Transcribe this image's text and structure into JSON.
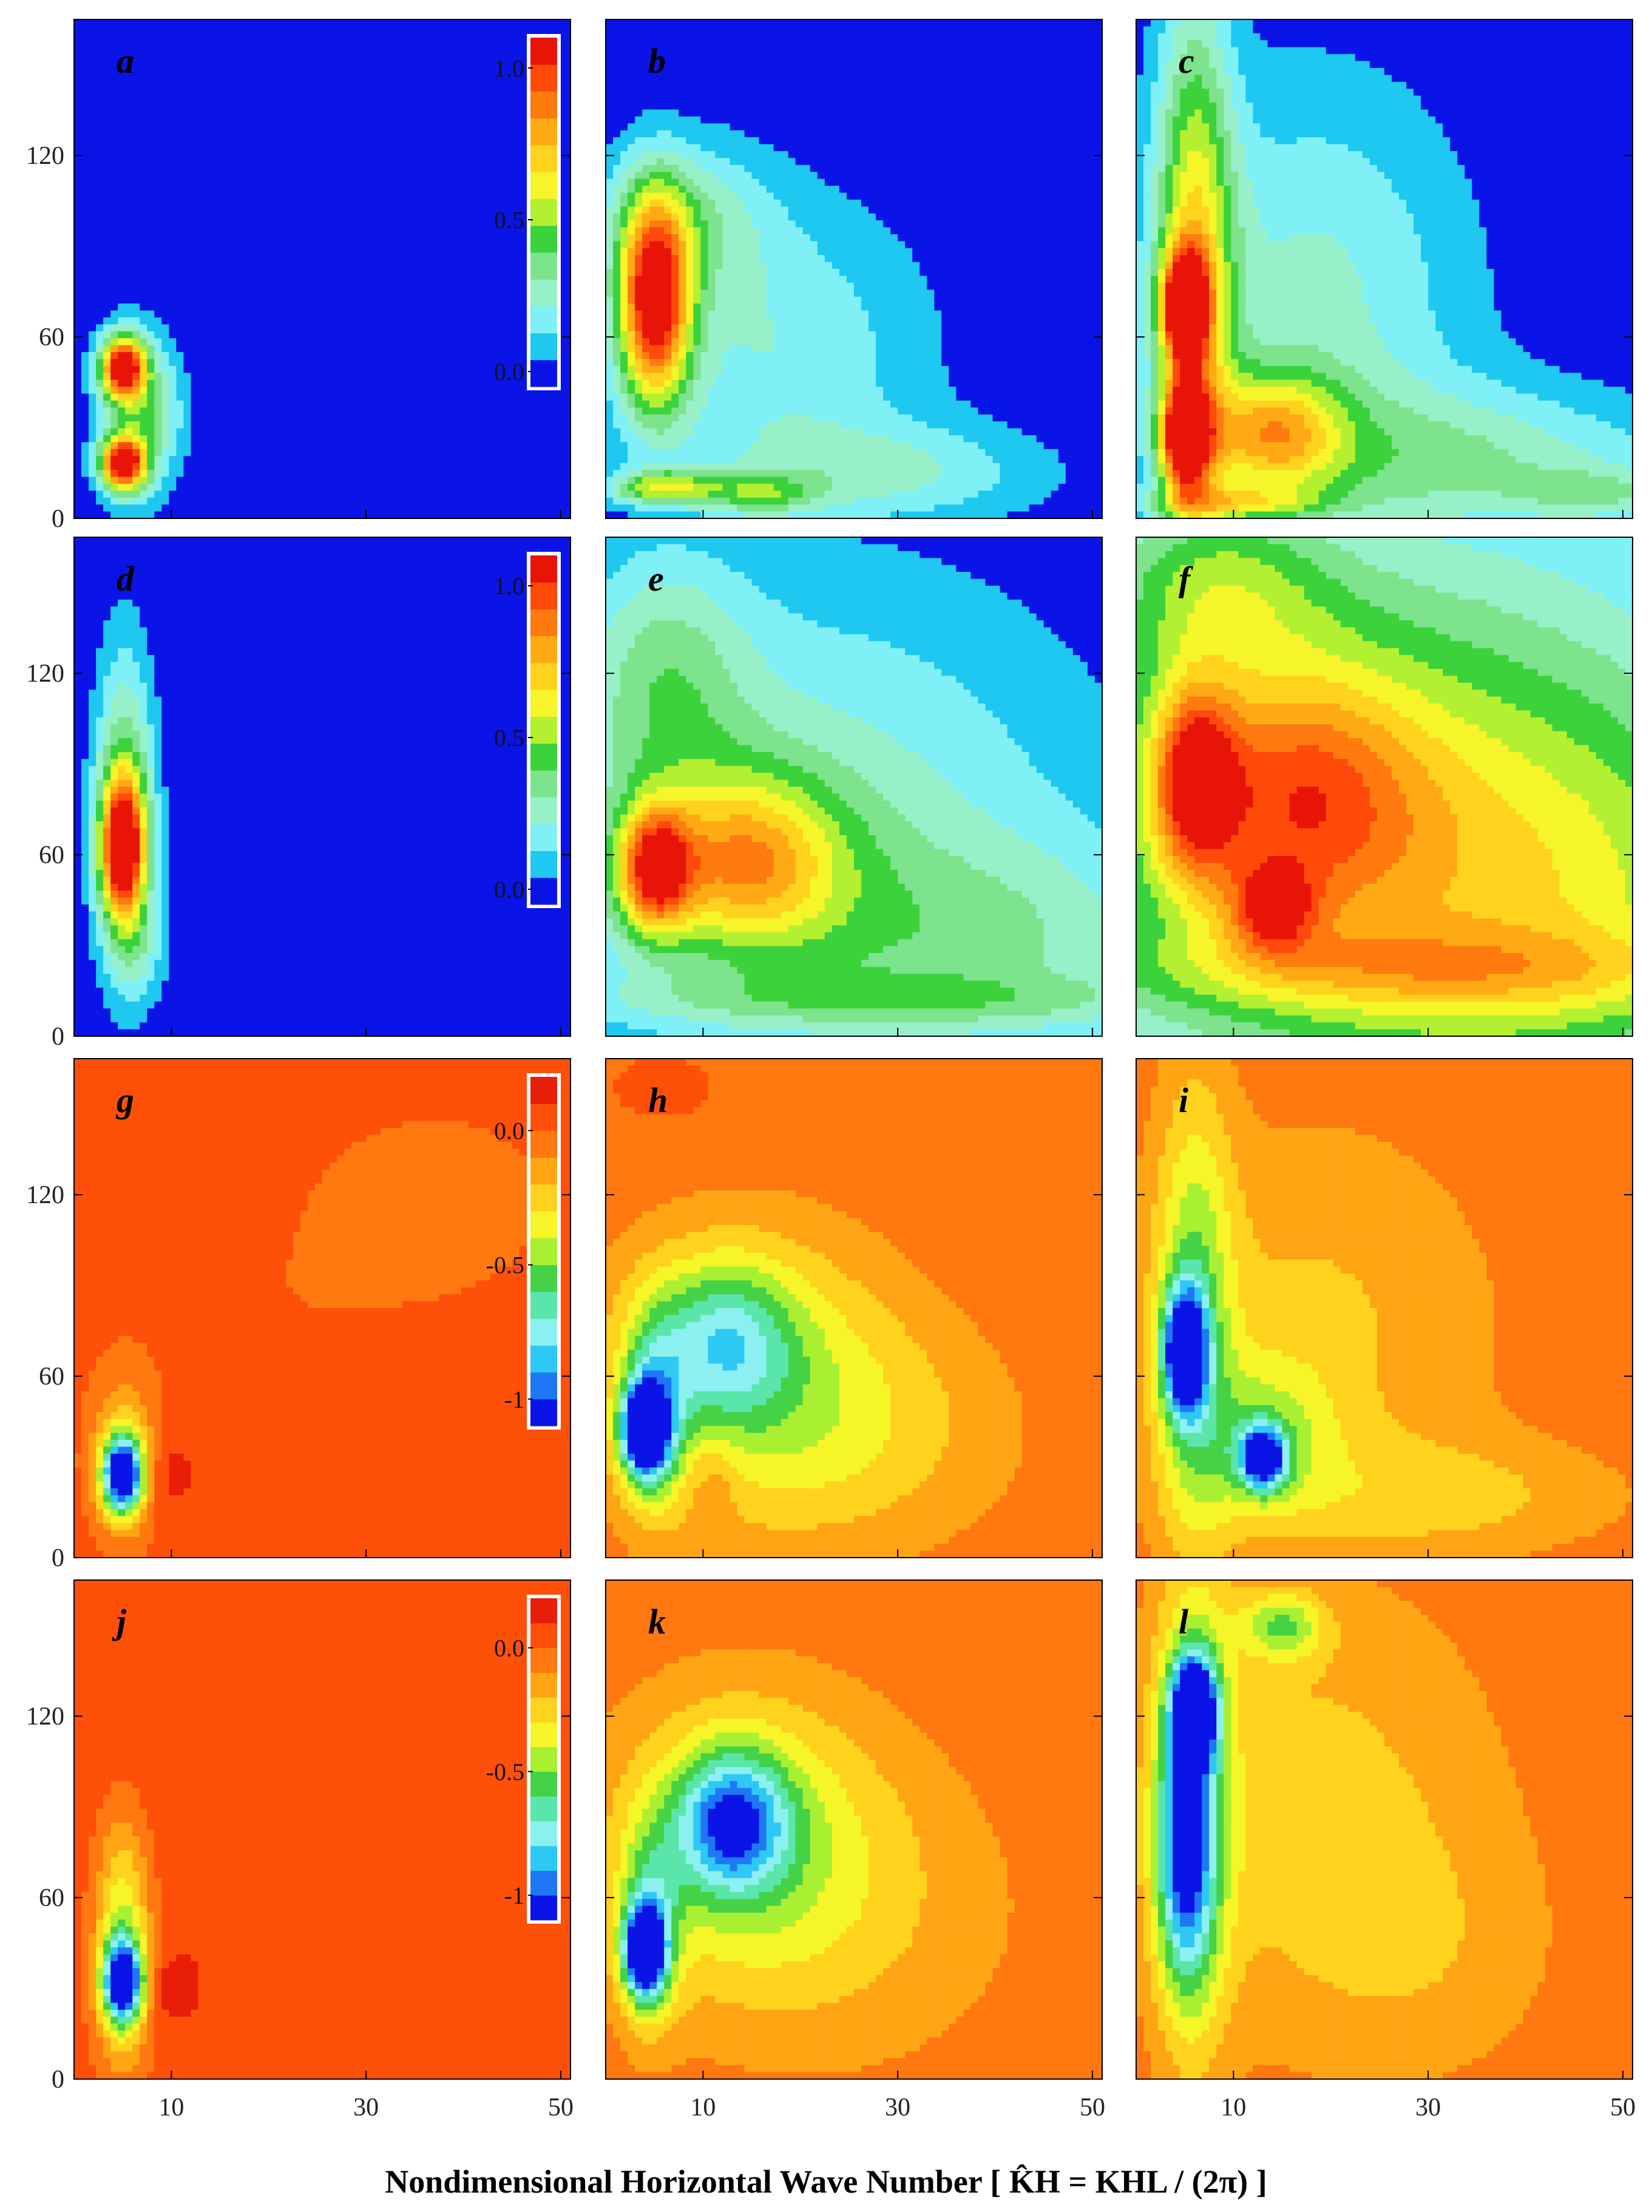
{
  "chart_data": {
    "type": "heatmap",
    "xlabel": "Nondimensional Horizontal Wave Number [ K̂H = KHL / (2π) ]",
    "ylabel": "",
    "xticks": [
      "10",
      "30",
      "50"
    ],
    "yticks": [
      "0",
      "60",
      "120"
    ],
    "xlim": [
      0,
      51
    ],
    "ylim": [
      0,
      165
    ],
    "grid": false,
    "palettes": {
      "positive": [
        "#0a14e6",
        "#1ec8f0",
        "#7ff0f5",
        "#98f0c8",
        "#7de38c",
        "#3cd23c",
        "#b4f032",
        "#f5f52a",
        "#ffd21e",
        "#ffaa14",
        "#ff7a0f",
        "#ff4a0a",
        "#e81408"
      ],
      "negative": [
        "#0a14e6",
        "#1e78f5",
        "#2ec8f5",
        "#8cf0f0",
        "#5ae6aa",
        "#46d246",
        "#aaf032",
        "#f5f528",
        "#ffd21e",
        "#ffa514",
        "#ff7810",
        "#ff500a",
        "#e81e08"
      ]
    },
    "colorbars": [
      {
        "row": 0,
        "ticks": [
          "1.0",
          "0.5",
          "0.0"
        ],
        "values": [
          1.0,
          0.5,
          0.0
        ],
        "range": [
          -0.05,
          1.1
        ],
        "palette": "positive"
      },
      {
        "row": 1,
        "ticks": [
          "1.0",
          "0.5",
          "0.0"
        ],
        "values": [
          1.0,
          0.5,
          0.0
        ],
        "range": [
          -0.05,
          1.1
        ],
        "palette": "positive"
      },
      {
        "row": 2,
        "ticks": [
          "0.0",
          "-0.5",
          "-1"
        ],
        "values": [
          0.0,
          -0.5,
          -1.0
        ],
        "range": [
          -1.1,
          0.2
        ],
        "palette": "negative"
      },
      {
        "row": 3,
        "ticks": [
          "0.0",
          "-0.5",
          "-1"
        ],
        "values": [
          0.0,
          -0.5,
          -1.0
        ],
        "range": [
          -1.1,
          0.2
        ],
        "palette": "negative"
      }
    ],
    "panels": [
      {
        "id": "a",
        "row": 0,
        "col": 0,
        "palette": "positive",
        "range": [
          0,
          1.1
        ],
        "background": 0.0,
        "blobs": [
          {
            "x": 5,
            "y": 50,
            "sx": 1.6,
            "sy": 7,
            "amp": 1.05
          },
          {
            "x": 5,
            "y": 18,
            "sx": 1.6,
            "sy": 6,
            "amp": 1.05
          },
          {
            "x": 6,
            "y": 34,
            "sx": 2.6,
            "sy": 20,
            "amp": 0.35
          },
          {
            "x": 9,
            "y": 35,
            "sx": 2.5,
            "sy": 16,
            "amp": 0.15
          }
        ]
      },
      {
        "id": "b",
        "row": 0,
        "col": 1,
        "palette": "positive",
        "range": [
          0,
          1.1
        ],
        "background": 0.0,
        "blobs": [
          {
            "x": 5,
            "y": 72,
            "sx": 2.6,
            "sy": 24,
            "amp": 1.05
          },
          {
            "x": 6,
            "y": 10,
            "sx": 4,
            "sy": 4,
            "amp": 0.5
          },
          {
            "x": 17,
            "y": 55,
            "sx": 12,
            "sy": 38,
            "amp": 0.25
          },
          {
            "x": 30,
            "y": 15,
            "sx": 12,
            "sy": 12,
            "amp": 0.22
          },
          {
            "x": 16,
            "y": 8,
            "sx": 4,
            "sy": 5,
            "amp": 0.3
          },
          {
            "x": 8,
            "y": 100,
            "sx": 6,
            "sy": 18,
            "amp": 0.25
          }
        ]
      },
      {
        "id": "c",
        "row": 0,
        "col": 2,
        "palette": "positive",
        "range": [
          0,
          1.1
        ],
        "background": 0.0,
        "blobs": [
          {
            "x": 5,
            "y": 70,
            "sx": 1.6,
            "sy": 12,
            "amp": 1.0
          },
          {
            "x": 5,
            "y": 27,
            "sx": 1.6,
            "sy": 12,
            "amp": 1.0
          },
          {
            "x": 6,
            "y": 80,
            "sx": 2.8,
            "sy": 65,
            "amp": 0.6
          },
          {
            "x": 14,
            "y": 28,
            "sx": 5,
            "sy": 14,
            "amp": 0.55
          },
          {
            "x": 18,
            "y": 70,
            "sx": 12,
            "sy": 55,
            "amp": 0.28
          },
          {
            "x": 35,
            "y": 18,
            "sx": 16,
            "sy": 18,
            "amp": 0.3
          },
          {
            "x": 10,
            "y": 5,
            "sx": 6,
            "sy": 4,
            "amp": 0.35
          },
          {
            "x": 48,
            "y": 8,
            "sx": 6,
            "sy": 6,
            "amp": 0.2
          }
        ]
      },
      {
        "id": "d",
        "row": 1,
        "col": 0,
        "palette": "positive",
        "range": [
          0,
          1.1
        ],
        "background": 0.0,
        "blobs": [
          {
            "x": 5,
            "y": 62,
            "sx": 1.6,
            "sy": 16,
            "amp": 1.0
          },
          {
            "x": 5.2,
            "y": 75,
            "sx": 2.2,
            "sy": 38,
            "amp": 0.45
          },
          {
            "x": 7,
            "y": 28,
            "sx": 2.2,
            "sy": 12,
            "amp": 0.15
          }
        ]
      },
      {
        "id": "e",
        "row": 1,
        "col": 1,
        "palette": "positive",
        "range": [
          0,
          1.1
        ],
        "background": 0.0,
        "blobs": [
          {
            "x": 5,
            "y": 55,
            "sx": 2.6,
            "sy": 14,
            "amp": 0.75
          },
          {
            "x": 14,
            "y": 58,
            "sx": 7,
            "sy": 20,
            "amp": 0.55
          },
          {
            "x": 20,
            "y": 70,
            "sx": 22,
            "sy": 60,
            "amp": 0.3
          },
          {
            "x": 40,
            "y": 30,
            "sx": 18,
            "sy": 25,
            "amp": 0.22
          },
          {
            "x": 6,
            "y": 120,
            "sx": 6,
            "sy": 30,
            "amp": 0.25
          },
          {
            "x": 30,
            "y": 12,
            "sx": 30,
            "sy": 6,
            "amp": 0.15
          }
        ]
      },
      {
        "id": "f",
        "row": 1,
        "col": 2,
        "palette": "positive",
        "range": [
          0,
          1.1
        ],
        "background": 0.0,
        "blobs": [
          {
            "x": 6,
            "y": 85,
            "sx": 3,
            "sy": 22,
            "amp": 0.6
          },
          {
            "x": 14,
            "y": 42,
            "sx": 3,
            "sy": 10,
            "amp": 0.45
          },
          {
            "x": 16,
            "y": 80,
            "sx": 9,
            "sy": 30,
            "amp": 0.45
          },
          {
            "x": 25,
            "y": 70,
            "sx": 28,
            "sy": 75,
            "amp": 0.55
          },
          {
            "x": 45,
            "y": 40,
            "sx": 18,
            "sy": 45,
            "amp": 0.25
          },
          {
            "x": 30,
            "y": 22,
            "sx": 25,
            "sy": 10,
            "amp": 0.25
          },
          {
            "x": 8,
            "y": 150,
            "sx": 8,
            "sy": 20,
            "amp": 0.3
          }
        ]
      },
      {
        "id": "g",
        "row": 2,
        "col": 0,
        "palette": "negative",
        "range": [
          -1.1,
          0.2
        ],
        "background": 0.05,
        "blobs": [
          {
            "x": 5,
            "y": 27,
            "sx": 1.4,
            "sy": 8,
            "amp": -1.1
          },
          {
            "x": 5,
            "y": 32,
            "sx": 2,
            "sy": 16,
            "amp": -0.4
          },
          {
            "x": 10,
            "y": 28,
            "sx": 2,
            "sy": 8,
            "amp": 0.12
          },
          {
            "x": 25,
            "y": 90,
            "sx": 25,
            "sy": 60,
            "amp": -0.05
          },
          {
            "x": 38,
            "y": 120,
            "sx": 6,
            "sy": 15,
            "amp": -0.08
          }
        ]
      },
      {
        "id": "h",
        "row": 2,
        "col": 1,
        "palette": "negative",
        "range": [
          -1.1,
          0.2
        ],
        "background": -0.02,
        "blobs": [
          {
            "x": 4,
            "y": 42,
            "sx": 1.6,
            "sy": 10,
            "amp": -1.1
          },
          {
            "x": 5,
            "y": 48,
            "sx": 2.4,
            "sy": 22,
            "amp": -0.45
          },
          {
            "x": 11,
            "y": 26,
            "sx": 2,
            "sy": 10,
            "amp": 0.12
          },
          {
            "x": 12,
            "y": 72,
            "sx": 5,
            "sy": 18,
            "amp": -0.45
          },
          {
            "x": 15,
            "y": 60,
            "sx": 11,
            "sy": 35,
            "amp": -0.35
          },
          {
            "x": 28,
            "y": 40,
            "sx": 12,
            "sy": 28,
            "amp": -0.15
          },
          {
            "x": 6,
            "y": 155,
            "sx": 3,
            "sy": 6,
            "amp": 0.1
          }
        ]
      },
      {
        "id": "i",
        "row": 2,
        "col": 2,
        "palette": "negative",
        "range": [
          -1.1,
          0.2
        ],
        "background": -0.02,
        "blobs": [
          {
            "x": 5,
            "y": 68,
            "sx": 1.5,
            "sy": 14,
            "amp": -1.1
          },
          {
            "x": 13,
            "y": 33,
            "sx": 1.6,
            "sy": 7,
            "amp": -0.95
          },
          {
            "x": 6,
            "y": 80,
            "sx": 2.8,
            "sy": 55,
            "amp": -0.4
          },
          {
            "x": 13,
            "y": 40,
            "sx": 5,
            "sy": 18,
            "amp": -0.3
          },
          {
            "x": 18,
            "y": 75,
            "sx": 14,
            "sy": 50,
            "amp": -0.2
          },
          {
            "x": 32,
            "y": 20,
            "sx": 14,
            "sy": 14,
            "amp": -0.18
          }
        ]
      },
      {
        "id": "j",
        "row": 3,
        "col": 0,
        "palette": "negative",
        "range": [
          -1.1,
          0.2
        ],
        "background": 0.05,
        "blobs": [
          {
            "x": 5,
            "y": 32,
            "sx": 1.4,
            "sy": 9,
            "amp": -1.1
          },
          {
            "x": 5,
            "y": 45,
            "sx": 2,
            "sy": 28,
            "amp": -0.5
          },
          {
            "x": 10,
            "y": 30,
            "sx": 2,
            "sy": 8,
            "amp": 0.12
          },
          {
            "x": 30,
            "y": 100,
            "sx": 25,
            "sy": 50,
            "amp": 0.04
          }
        ]
      },
      {
        "id": "k",
        "row": 3,
        "col": 1,
        "palette": "negative",
        "range": [
          -1.1,
          0.2
        ],
        "background": -0.02,
        "blobs": [
          {
            "x": 4,
            "y": 42,
            "sx": 1.4,
            "sy": 10,
            "amp": -1.1
          },
          {
            "x": 4.5,
            "y": 50,
            "sx": 2.2,
            "sy": 22,
            "amp": -0.45
          },
          {
            "x": 13,
            "y": 85,
            "sx": 4,
            "sy": 16,
            "amp": -0.7
          },
          {
            "x": 14,
            "y": 80,
            "sx": 10,
            "sy": 35,
            "amp": -0.35
          },
          {
            "x": 25,
            "y": 55,
            "sx": 14,
            "sy": 40,
            "amp": -0.15
          }
        ]
      },
      {
        "id": "l",
        "row": 3,
        "col": 2,
        "palette": "negative",
        "range": [
          -1.1,
          0.2
        ],
        "background": -0.02,
        "blobs": [
          {
            "x": 6,
            "y": 122,
            "sx": 1.6,
            "sy": 12,
            "amp": -1.1
          },
          {
            "x": 5,
            "y": 75,
            "sx": 2,
            "sy": 30,
            "amp": -0.7
          },
          {
            "x": 6,
            "y": 95,
            "sx": 2.8,
            "sy": 60,
            "amp": -0.4
          },
          {
            "x": 15,
            "y": 150,
            "sx": 3,
            "sy": 8,
            "amp": -0.4
          },
          {
            "x": 18,
            "y": 90,
            "sx": 14,
            "sy": 55,
            "amp": -0.22
          },
          {
            "x": 30,
            "y": 40,
            "sx": 10,
            "sy": 30,
            "amp": -0.1
          }
        ]
      }
    ]
  }
}
